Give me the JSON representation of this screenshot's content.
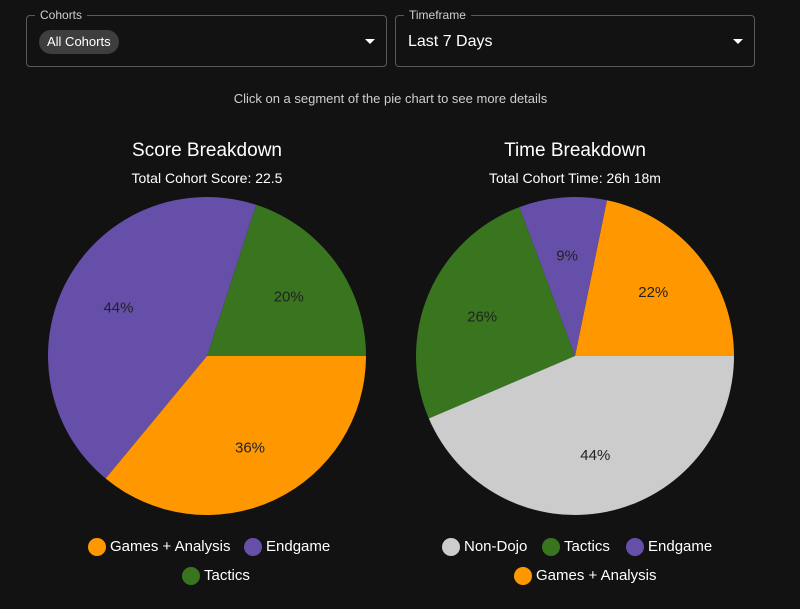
{
  "filters": {
    "cohorts": {
      "label": "Cohorts",
      "selected": "All Cohorts"
    },
    "timeframe": {
      "label": "Timeframe",
      "selected": "Last 7 Days"
    }
  },
  "hint_text": "Click on a segment of the pie chart to see more details",
  "colors": {
    "Games + Analysis": "#ff9800",
    "Endgame": "#664fa9",
    "Tactics": "#39751f",
    "Non-Dojo": "#cccccc"
  },
  "chart_data": [
    {
      "type": "pie",
      "title": "Score Breakdown",
      "subtitle": "Total Cohort Score: 22.5",
      "start": "right",
      "direction": "counterclockwise",
      "slices": [
        {
          "name": "Tactics",
          "value": 20,
          "label": "20%"
        },
        {
          "name": "Endgame",
          "value": 44,
          "label": "44%"
        },
        {
          "name": "Games + Analysis",
          "value": 36,
          "label": "36%"
        }
      ],
      "legend": [
        "Games + Analysis",
        "Endgame",
        "Tactics"
      ]
    },
    {
      "type": "pie",
      "title": "Time Breakdown",
      "subtitle": "Total Cohort Time: 26h 18m",
      "start": "right",
      "direction": "counterclockwise",
      "slices": [
        {
          "name": "Games + Analysis",
          "value": 22,
          "label": "22%"
        },
        {
          "name": "Endgame",
          "value": 9,
          "label": "9%"
        },
        {
          "name": "Tactics",
          "value": 26,
          "label": "26%"
        },
        {
          "name": "Non-Dojo",
          "value": 44,
          "label": "44%"
        }
      ],
      "legend": [
        "Non-Dojo",
        "Tactics",
        "Endgame",
        "Games + Analysis"
      ]
    }
  ]
}
